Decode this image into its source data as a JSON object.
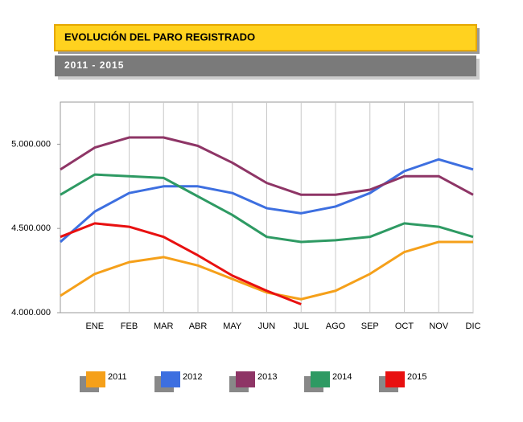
{
  "chart_data": {
    "type": "line",
    "title": "EVOLUCIÓN DEL PARO REGISTRADO",
    "subtitle": "2011 - 2015",
    "categories": [
      null,
      "ENE",
      "FEB",
      "MAR",
      "ABR",
      "MAY",
      "JUN",
      "JUL",
      "AGO",
      "SEP",
      "OCT",
      "NOV",
      "DIC"
    ],
    "ylim": [
      4000000,
      5250000
    ],
    "yticks": [
      {
        "value": 4000000,
        "label": "4.000.000"
      },
      {
        "value": 4500000,
        "label": "4.500.000"
      },
      {
        "value": 5000000,
        "label": "5.000.000"
      }
    ],
    "grid": true,
    "legend": "bottom",
    "series": [
      {
        "name": "2011",
        "color": "#f5a01a",
        "values": [
          4100000,
          4230000,
          4300000,
          4330000,
          4280000,
          4200000,
          4120000,
          4080000,
          4130000,
          4230000,
          4360000,
          4420000,
          4420000
        ]
      },
      {
        "name": "2012",
        "color": "#3d6fe0",
        "values": [
          4420000,
          4600000,
          4710000,
          4750000,
          4750000,
          4710000,
          4620000,
          4590000,
          4630000,
          4710000,
          4840000,
          4910000,
          4850000
        ]
      },
      {
        "name": "2013",
        "color": "#8e3566",
        "values": [
          4850000,
          4980000,
          5040000,
          5040000,
          4990000,
          4890000,
          4770000,
          4700000,
          4700000,
          4730000,
          4810000,
          4810000,
          4700000
        ]
      },
      {
        "name": "2014",
        "color": "#2e9a63",
        "values": [
          4700000,
          4820000,
          4810000,
          4800000,
          4690000,
          4580000,
          4450000,
          4420000,
          4430000,
          4450000,
          4530000,
          4510000,
          4450000
        ]
      },
      {
        "name": "2015",
        "color": "#e81010",
        "values": [
          4450000,
          4530000,
          4510000,
          4450000,
          4340000,
          4220000,
          4130000,
          4050000,
          null,
          null,
          null,
          null,
          null
        ]
      }
    ]
  }
}
